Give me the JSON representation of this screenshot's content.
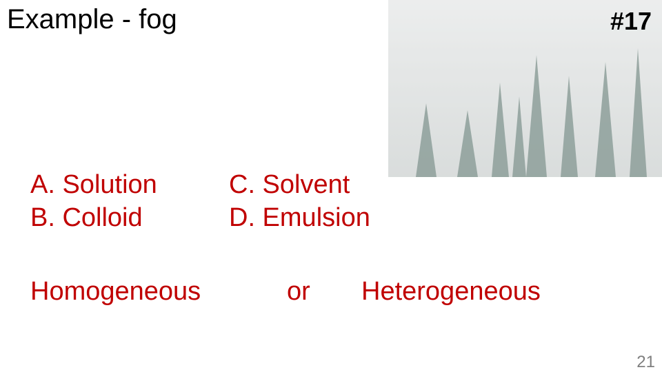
{
  "title": "Example - fog",
  "number": "#17",
  "options": [
    "A. Solution",
    "B. Colloid",
    "C. Solvent",
    "D. Emulsion"
  ],
  "choice": [
    "Homogeneous",
    "or",
    "Heterogeneous"
  ],
  "page": "21"
}
